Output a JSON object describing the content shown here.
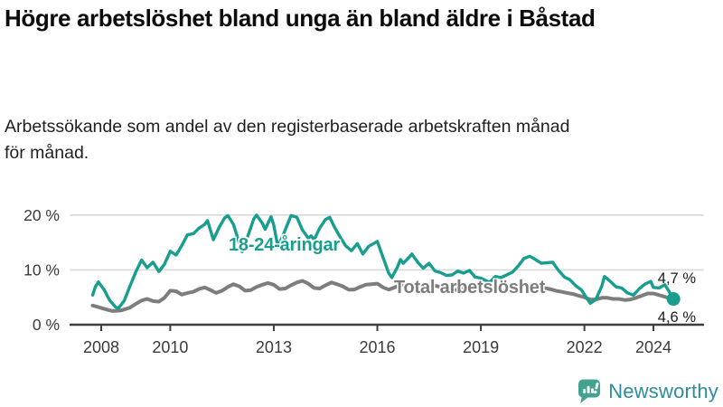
{
  "header": {
    "title": "Högre arbetslöshet bland unga än bland äldre i Båstad",
    "subtitle": "Arbetssökande som andel av den registerbaserade arbetskraften månad för månad."
  },
  "chart_data": {
    "type": "line",
    "title": "Högre arbetslöshet bland unga än bland äldre i Båstad",
    "subtitle": "Arbetssökande som andel av den registerbaserade arbetskraften månad för månad.",
    "unit": "%",
    "grid": "horizontal",
    "legend_position": "inline-labels",
    "x_axis": {
      "range": [
        2007.6,
        2025.45
      ],
      "ticks": [
        {
          "value": 2008,
          "label": "2008"
        },
        {
          "value": 2010,
          "label": "2010"
        },
        {
          "value": 2013,
          "label": "2013"
        },
        {
          "value": 2016,
          "label": "2016"
        },
        {
          "value": 2019,
          "label": "2019"
        },
        {
          "value": 2022,
          "label": "2022"
        },
        {
          "value": 2024,
          "label": "2024"
        }
      ]
    },
    "y_axis": {
      "range": [
        0,
        20.5
      ],
      "ticks": [
        {
          "value": 0,
          "label": "0 %"
        },
        {
          "value": 10,
          "label": "10 %"
        },
        {
          "value": 20,
          "label": "20 %"
        }
      ]
    },
    "series": [
      {
        "name": "18-24-åringar",
        "color": "#189e8f",
        "end_label": "4,7 %",
        "end_value": 4.7,
        "points": [
          [
            2007.75,
            5.4
          ],
          [
            2007.83,
            6.9
          ],
          [
            2007.92,
            7.8
          ],
          [
            2008.08,
            6.4
          ],
          [
            2008.25,
            4.4
          ],
          [
            2008.42,
            3.2
          ],
          [
            2008.5,
            3.0
          ],
          [
            2008.67,
            4.4
          ],
          [
            2008.83,
            7.0
          ],
          [
            2009.0,
            9.6
          ],
          [
            2009.17,
            11.8
          ],
          [
            2009.33,
            10.4
          ],
          [
            2009.5,
            11.4
          ],
          [
            2009.67,
            9.7
          ],
          [
            2009.83,
            11.0
          ],
          [
            2010.0,
            13.4
          ],
          [
            2010.17,
            12.7
          ],
          [
            2010.33,
            14.4
          ],
          [
            2010.5,
            16.4
          ],
          [
            2010.67,
            16.6
          ],
          [
            2010.83,
            17.6
          ],
          [
            2011.0,
            18.3
          ],
          [
            2011.08,
            19.0
          ],
          [
            2011.25,
            15.5
          ],
          [
            2011.42,
            17.8
          ],
          [
            2011.58,
            19.5
          ],
          [
            2011.67,
            19.9
          ],
          [
            2011.83,
            18.3
          ],
          [
            2012.0,
            14.9
          ],
          [
            2012.08,
            13.3
          ],
          [
            2012.25,
            16.2
          ],
          [
            2012.42,
            19.3
          ],
          [
            2012.5,
            20.0
          ],
          [
            2012.67,
            18.5
          ],
          [
            2012.75,
            17.4
          ],
          [
            2012.92,
            19.7
          ],
          [
            2013.0,
            18.2
          ],
          [
            2013.12,
            14.2
          ],
          [
            2013.3,
            16.8
          ],
          [
            2013.5,
            19.9
          ],
          [
            2013.67,
            19.6
          ],
          [
            2013.83,
            17.3
          ],
          [
            2014.0,
            15.8
          ],
          [
            2014.08,
            16.2
          ],
          [
            2014.17,
            15.5
          ],
          [
            2014.33,
            17.6
          ],
          [
            2014.5,
            19.2
          ],
          [
            2014.62,
            19.6
          ],
          [
            2014.75,
            17.9
          ],
          [
            2014.92,
            16.0
          ],
          [
            2015.08,
            14.4
          ],
          [
            2015.25,
            13.5
          ],
          [
            2015.42,
            14.8
          ],
          [
            2015.58,
            12.9
          ],
          [
            2015.75,
            14.3
          ],
          [
            2015.92,
            14.9
          ],
          [
            2016.0,
            15.2
          ],
          [
            2016.17,
            12.2
          ],
          [
            2016.33,
            9.4
          ],
          [
            2016.42,
            8.6
          ],
          [
            2016.58,
            10.5
          ],
          [
            2016.67,
            11.9
          ],
          [
            2016.75,
            11.2
          ],
          [
            2016.92,
            12.3
          ],
          [
            2017.0,
            12.9
          ],
          [
            2017.17,
            11.4
          ],
          [
            2017.33,
            10.3
          ],
          [
            2017.5,
            11.2
          ],
          [
            2017.67,
            9.8
          ],
          [
            2017.83,
            9.5
          ],
          [
            2018.0,
            9.0
          ],
          [
            2018.17,
            9.1
          ],
          [
            2018.33,
            9.8
          ],
          [
            2018.5,
            9.4
          ],
          [
            2018.67,
            9.9
          ],
          [
            2018.83,
            8.7
          ],
          [
            2019.0,
            8.5
          ],
          [
            2019.25,
            7.7
          ],
          [
            2019.42,
            8.8
          ],
          [
            2019.58,
            8.6
          ],
          [
            2019.75,
            9.1
          ],
          [
            2019.92,
            9.6
          ],
          [
            2020.08,
            10.7
          ],
          [
            2020.25,
            12.1
          ],
          [
            2020.42,
            12.5
          ],
          [
            2020.58,
            11.9
          ],
          [
            2020.75,
            11.2
          ],
          [
            2020.92,
            11.3
          ],
          [
            2021.08,
            11.4
          ],
          [
            2021.25,
            9.9
          ],
          [
            2021.42,
            8.7
          ],
          [
            2021.58,
            8.2
          ],
          [
            2021.75,
            7.1
          ],
          [
            2021.92,
            6.3
          ],
          [
            2022.08,
            4.7
          ],
          [
            2022.17,
            3.9
          ],
          [
            2022.33,
            4.6
          ],
          [
            2022.5,
            7.0
          ],
          [
            2022.58,
            8.8
          ],
          [
            2022.75,
            7.9
          ],
          [
            2022.92,
            6.9
          ],
          [
            2023.08,
            6.7
          ],
          [
            2023.25,
            5.8
          ],
          [
            2023.42,
            5.4
          ],
          [
            2023.58,
            6.5
          ],
          [
            2023.75,
            7.4
          ],
          [
            2023.92,
            7.9
          ],
          [
            2024.0,
            6.8
          ],
          [
            2024.17,
            6.7
          ],
          [
            2024.33,
            7.3
          ],
          [
            2024.42,
            6.4
          ],
          [
            2024.58,
            4.7
          ]
        ]
      },
      {
        "name": "Total arbetslöshet",
        "color": "#7d7d7d",
        "end_label": "4,6 %",
        "end_value": 4.6,
        "points": [
          [
            2007.75,
            3.5
          ],
          [
            2007.92,
            3.2
          ],
          [
            2008.08,
            2.9
          ],
          [
            2008.33,
            2.5
          ],
          [
            2008.58,
            2.6
          ],
          [
            2008.83,
            3.1
          ],
          [
            2009.0,
            3.8
          ],
          [
            2009.17,
            4.4
          ],
          [
            2009.33,
            4.7
          ],
          [
            2009.5,
            4.3
          ],
          [
            2009.67,
            4.2
          ],
          [
            2009.83,
            4.9
          ],
          [
            2010.0,
            6.2
          ],
          [
            2010.17,
            6.1
          ],
          [
            2010.33,
            5.5
          ],
          [
            2010.5,
            5.8
          ],
          [
            2010.67,
            6.0
          ],
          [
            2010.83,
            6.5
          ],
          [
            2011.0,
            6.8
          ],
          [
            2011.17,
            6.3
          ],
          [
            2011.33,
            5.8
          ],
          [
            2011.5,
            6.2
          ],
          [
            2011.67,
            6.9
          ],
          [
            2011.83,
            7.4
          ],
          [
            2012.0,
            7.0
          ],
          [
            2012.17,
            6.2
          ],
          [
            2012.33,
            6.3
          ],
          [
            2012.5,
            6.9
          ],
          [
            2012.67,
            7.3
          ],
          [
            2012.83,
            7.6
          ],
          [
            2013.0,
            7.3
          ],
          [
            2013.17,
            6.5
          ],
          [
            2013.33,
            6.6
          ],
          [
            2013.5,
            7.2
          ],
          [
            2013.67,
            7.7
          ],
          [
            2013.83,
            8.0
          ],
          [
            2014.0,
            7.5
          ],
          [
            2014.17,
            6.7
          ],
          [
            2014.33,
            6.6
          ],
          [
            2014.5,
            7.2
          ],
          [
            2014.67,
            7.7
          ],
          [
            2014.83,
            7.4
          ],
          [
            2015.0,
            7.0
          ],
          [
            2015.17,
            6.4
          ],
          [
            2015.33,
            6.4
          ],
          [
            2015.5,
            6.9
          ],
          [
            2015.67,
            7.3
          ],
          [
            2015.83,
            7.4
          ],
          [
            2016.0,
            7.5
          ],
          [
            2016.17,
            6.8
          ],
          [
            2016.33,
            6.4
          ],
          [
            2016.5,
            6.8
          ],
          [
            2016.67,
            7.2
          ],
          [
            2016.83,
            7.3
          ],
          [
            2017.0,
            7.2
          ],
          [
            2017.17,
            6.7
          ],
          [
            2017.33,
            6.5
          ],
          [
            2017.5,
            6.9
          ],
          [
            2017.67,
            7.1
          ],
          [
            2017.83,
            6.9
          ],
          [
            2018.0,
            6.8
          ],
          [
            2018.17,
            6.4
          ],
          [
            2018.33,
            6.3
          ],
          [
            2018.5,
            6.6
          ],
          [
            2018.67,
            6.7
          ],
          [
            2018.83,
            6.4
          ],
          [
            2019.0,
            6.2
          ],
          [
            2019.17,
            5.9
          ],
          [
            2019.33,
            6.1
          ],
          [
            2019.5,
            6.4
          ],
          [
            2019.67,
            6.2
          ],
          [
            2019.83,
            6.4
          ],
          [
            2020.0,
            6.6
          ],
          [
            2020.17,
            7.1
          ],
          [
            2020.33,
            7.4
          ],
          [
            2020.5,
            7.2
          ],
          [
            2020.67,
            6.9
          ],
          [
            2020.83,
            6.7
          ],
          [
            2021.0,
            6.5
          ],
          [
            2021.17,
            6.2
          ],
          [
            2021.33,
            6.0
          ],
          [
            2021.5,
            5.8
          ],
          [
            2021.67,
            5.6
          ],
          [
            2021.83,
            5.3
          ],
          [
            2022.0,
            5.0
          ],
          [
            2022.17,
            4.6
          ],
          [
            2022.33,
            4.6
          ],
          [
            2022.5,
            4.9
          ],
          [
            2022.67,
            4.9
          ],
          [
            2022.83,
            4.7
          ],
          [
            2023.0,
            4.7
          ],
          [
            2023.17,
            4.5
          ],
          [
            2023.33,
            4.6
          ],
          [
            2023.5,
            4.9
          ],
          [
            2023.67,
            5.3
          ],
          [
            2023.83,
            5.7
          ],
          [
            2024.0,
            5.7
          ],
          [
            2024.17,
            5.4
          ],
          [
            2024.33,
            5.1
          ],
          [
            2024.5,
            4.7
          ],
          [
            2024.58,
            4.6
          ]
        ]
      }
    ],
    "colors": {
      "young_series": "#189e8f",
      "total_series": "#7d7d7d",
      "gridline": "#d9d9d9",
      "axis": "#3d3d3d",
      "tick_label": "#3a3a3a"
    }
  },
  "footer": {
    "brand": "Newsworthy",
    "brand_icon": "newsworthy-speech-bubble-bar-chart-icon",
    "brand_color": "#2e8c9c",
    "brand_icon_color": "#44a390"
  }
}
